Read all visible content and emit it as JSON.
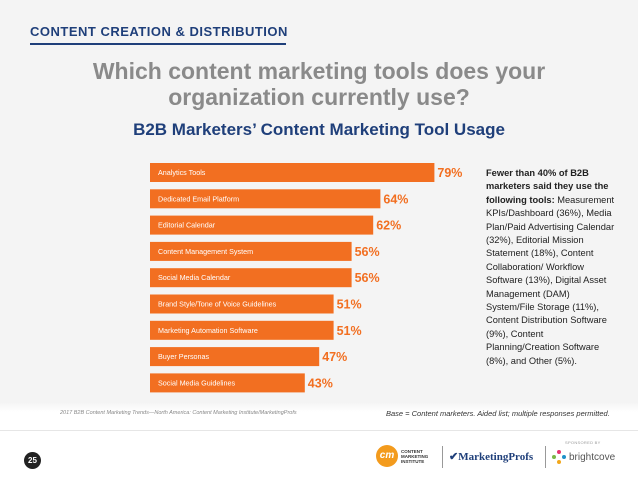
{
  "header": {
    "section_label": "CONTENT CREATION & DISTRIBUTION",
    "question_line1": "Which content marketing tools does your",
    "question_line2": "organization currently use?"
  },
  "chart_data": {
    "type": "bar",
    "orientation": "horizontal",
    "title": "B2B Marketers’ Content Marketing Tool Usage",
    "categories": [
      "Analytics Tools",
      "Dedicated Email Platform",
      "Editorial Calendar",
      "Content Management System",
      "Social Media Calendar",
      "Brand Style/Tone of Voice Guidelines",
      "Marketing Automation Software",
      "Buyer Personas",
      "Social Media Guidelines"
    ],
    "values": [
      79,
      64,
      62,
      56,
      56,
      51,
      51,
      47,
      43
    ],
    "value_labels": [
      "79%",
      "64%",
      "62%",
      "56%",
      "56%",
      "51%",
      "51%",
      "47%",
      "43%"
    ],
    "xlim": [
      0,
      100
    ],
    "bar_color": "#f26f21",
    "label_color": "#f26f21",
    "grid": false
  },
  "note": {
    "lead": "Fewer than 40% of B2B marketers said they use the following tools:",
    "body": " Measurement KPIs/Dashboard (36%), Media Plan/Paid Advertising Calendar (32%), Editorial Mission Statement (18%), Content Collaboration/ Workflow Software (13%), Digital Asset Management (DAM) System/File Storage (11%), Content Distribution Software (9%), Content Planning/Creation Software (8%), and Other (5%)."
  },
  "footer": {
    "source": "2017 B2B Content Marketing Trends—North America: Content Marketing Institute/MarketingProfs",
    "base": "Base = Content marketers. Aided list; multiple responses permitted.",
    "page_number": "25",
    "cmi_logo_mark": "cm",
    "cmi_logo_text": "CONTENT MARKETING INSTITUTE",
    "marketingprofs_logo": "MarketingProfs",
    "sponsor_label": "SPONSORED BY",
    "brightcove_logo": "brightcove"
  },
  "colors": {
    "navy": "#1f3f7a",
    "orange": "#f26f21",
    "gray_text": "#8a8a8a"
  }
}
